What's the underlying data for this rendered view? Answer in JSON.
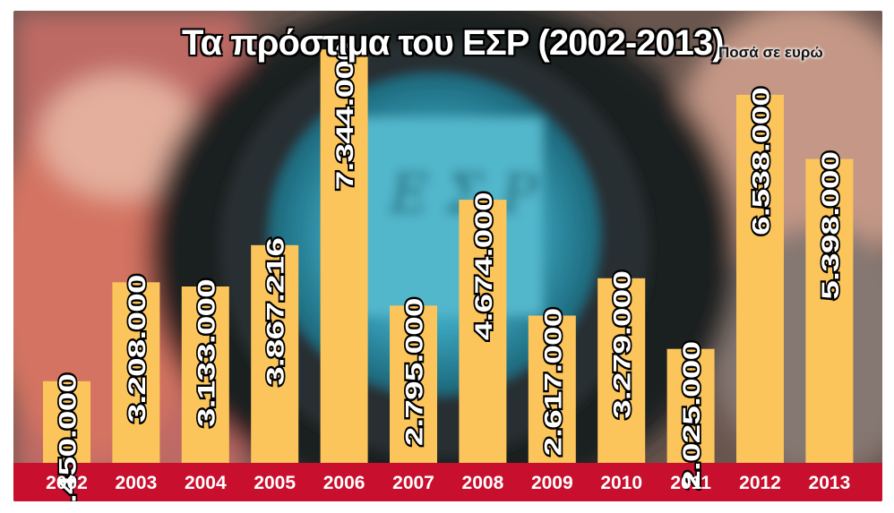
{
  "title": "Τα πρόστιμα του ΕΣΡ (2002-2013)",
  "subtitle": "Ποσά σε ευρώ",
  "colors": {
    "bar": "#FCC55C",
    "axis_band": "#C8102E",
    "label_text": "#FFFFFF"
  },
  "chart_data": {
    "type": "bar",
    "title": "Τα πρόστιμα του ΕΣΡ (2002-2013)",
    "subtitle": "Ποσά σε ευρώ",
    "xlabel": "",
    "ylabel": "",
    "ylim": [
      0,
      8000000
    ],
    "grid": false,
    "categories": [
      "2002",
      "2003",
      "2004",
      "2005",
      "2006",
      "2007",
      "2008",
      "2009",
      "2010",
      "2011",
      "2012",
      "2013"
    ],
    "values": [
      1450000,
      3208000,
      3133000,
      3867216,
      7344000,
      2795000,
      4674000,
      2617000,
      3279000,
      2025000,
      6538000,
      5398000
    ],
    "value_labels": [
      "1.450.000",
      "3.208.000",
      "3.133.000",
      "3.867.216",
      "7.344.000",
      "2.795.000",
      "4.674.000",
      "2.617.000",
      "3.279.000",
      "2.025.000",
      "6.538.000",
      "5.398.000"
    ]
  }
}
